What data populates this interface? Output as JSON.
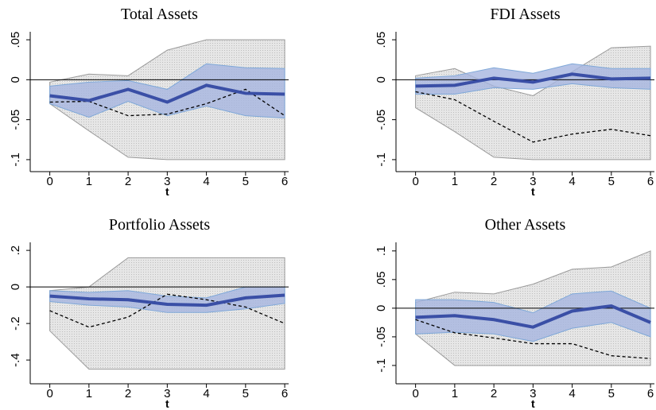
{
  "chart_data": [
    {
      "type": "line",
      "title": "Total Assets",
      "xlabel": "t",
      "x": [
        0,
        1,
        2,
        3,
        4,
        5,
        6
      ],
      "xlim": [
        -0.5,
        6.1
      ],
      "xticks": [
        0,
        1,
        2,
        3,
        4,
        5,
        6
      ],
      "ylim": [
        -0.115,
        0.06
      ],
      "yticks": [
        {
          "value": -0.1,
          "label": "-.1"
        },
        {
          "value": -0.05,
          "label": "-.05"
        },
        0,
        {
          "value": 0.05,
          "label": ".05"
        }
      ],
      "hline": 0,
      "bands": [
        {
          "color": "#e2e2e2",
          "edge": "#9a9a9a",
          "lower": [
            -0.03,
            -0.064,
            -0.097,
            -0.1,
            -0.1,
            -0.1,
            -0.1
          ],
          "upper": [
            -0.003,
            0.007,
            0.005,
            0.037,
            0.05,
            0.05,
            0.05
          ]
        },
        {
          "color": "#a6b5e0",
          "edge": "#7fa8d8",
          "lower": [
            -0.03,
            -0.047,
            -0.027,
            -0.045,
            -0.033,
            -0.045,
            -0.048
          ],
          "upper": [
            -0.008,
            -0.003,
            -0.001,
            -0.012,
            0.02,
            0.015,
            0.014
          ]
        }
      ],
      "lines": [
        {
          "color": "#000000",
          "dashed": true,
          "values": [
            -0.028,
            -0.027,
            -0.045,
            -0.043,
            -0.03,
            -0.012,
            -0.045
          ]
        },
        {
          "color": "#3a4fa6",
          "dashed": false,
          "values": [
            -0.02,
            -0.026,
            -0.012,
            -0.028,
            -0.007,
            -0.017,
            -0.018
          ]
        }
      ]
    },
    {
      "type": "line",
      "title": "FDI Assets",
      "xlabel": "t",
      "x": [
        0,
        1,
        2,
        3,
        4,
        5,
        6
      ],
      "xlim": [
        -0.5,
        6.1
      ],
      "xticks": [
        0,
        1,
        2,
        3,
        4,
        5,
        6
      ],
      "ylim": [
        -0.115,
        0.06
      ],
      "yticks": [
        {
          "value": -0.1,
          "label": "-.1"
        },
        {
          "value": -0.05,
          "label": "-.05"
        },
        0,
        {
          "value": 0.05,
          "label": ".05"
        }
      ],
      "hline": 0,
      "bands": [
        {
          "color": "#e2e2e2",
          "edge": "#9a9a9a",
          "lower": [
            -0.035,
            -0.065,
            -0.097,
            -0.1,
            -0.1,
            -0.1,
            -0.1
          ],
          "upper": [
            0.005,
            0.014,
            -0.008,
            -0.02,
            0.01,
            0.04,
            0.042
          ]
        },
        {
          "color": "#a6b5e0",
          "edge": "#7fa8d8",
          "lower": [
            -0.018,
            -0.018,
            -0.01,
            -0.012,
            -0.005,
            -0.01,
            -0.012
          ],
          "upper": [
            0.002,
            0.005,
            0.015,
            0.008,
            0.02,
            0.014,
            0.014
          ]
        }
      ],
      "lines": [
        {
          "color": "#000000",
          "dashed": true,
          "values": [
            -0.015,
            -0.025,
            -0.052,
            -0.078,
            -0.068,
            -0.062,
            -0.07
          ]
        },
        {
          "color": "#3a4fa6",
          "dashed": false,
          "values": [
            -0.008,
            -0.007,
            0.002,
            -0.003,
            0.007,
            0.001,
            0.002
          ]
        }
      ]
    },
    {
      "type": "line",
      "title": "Portfolio Assets",
      "xlabel": "t",
      "x": [
        0,
        1,
        2,
        3,
        4,
        5,
        6
      ],
      "xlim": [
        -0.5,
        6.1
      ],
      "xticks": [
        0,
        1,
        2,
        3,
        4,
        5,
        6
      ],
      "ylim": [
        -0.53,
        0.244
      ],
      "yticks": [
        {
          "value": -0.4,
          "label": "-.4"
        },
        {
          "value": -0.2,
          "label": "-.2"
        },
        0,
        {
          "value": 0.2,
          "label": ".2"
        }
      ],
      "hline": 0,
      "bands": [
        {
          "color": "#e2e2e2",
          "edge": "#9a9a9a",
          "lower": [
            -0.24,
            -0.45,
            -0.45,
            -0.45,
            -0.45,
            -0.45,
            -0.45
          ],
          "upper": [
            -0.02,
            0.0,
            0.16,
            0.16,
            0.16,
            0.16,
            0.16
          ]
        },
        {
          "color": "#a6b5e0",
          "edge": "#7fa8d8",
          "lower": [
            -0.08,
            -0.1,
            -0.11,
            -0.14,
            -0.14,
            -0.12,
            -0.09
          ],
          "upper": [
            -0.02,
            -0.03,
            -0.02,
            -0.05,
            -0.06,
            0.0,
            0.0
          ]
        }
      ],
      "lines": [
        {
          "color": "#000000",
          "dashed": true,
          "values": [
            -0.13,
            -0.22,
            -0.165,
            -0.04,
            -0.07,
            -0.11,
            -0.2
          ]
        },
        {
          "color": "#3a4fa6",
          "dashed": false,
          "values": [
            -0.05,
            -0.065,
            -0.07,
            -0.095,
            -0.1,
            -0.06,
            -0.045
          ]
        }
      ]
    },
    {
      "type": "line",
      "title": "Other Assets",
      "xlabel": "t",
      "x": [
        0,
        1,
        2,
        3,
        4,
        5,
        6
      ],
      "xlim": [
        -0.5,
        6.1
      ],
      "xticks": [
        0,
        1,
        2,
        3,
        4,
        5,
        6
      ],
      "ylim": [
        -0.132,
        0.115
      ],
      "yticks": [
        {
          "value": -0.1,
          "label": "-.1"
        },
        {
          "value": -0.05,
          "label": "-.05"
        },
        0,
        {
          "value": 0.05,
          "label": ".05"
        },
        {
          "value": 0.1,
          "label": ".1"
        }
      ],
      "hline": 0,
      "bands": [
        {
          "color": "#e2e2e2",
          "edge": "#9a9a9a",
          "lower": [
            -0.045,
            -0.1,
            -0.1,
            -0.1,
            -0.1,
            -0.1,
            -0.1
          ],
          "upper": [
            0.01,
            0.028,
            0.025,
            0.042,
            0.068,
            0.072,
            0.1
          ]
        },
        {
          "color": "#a6b5e0",
          "edge": "#7fa8d8",
          "lower": [
            -0.045,
            -0.042,
            -0.045,
            -0.058,
            -0.035,
            -0.025,
            -0.05
          ],
          "upper": [
            0.015,
            0.015,
            0.01,
            -0.008,
            0.025,
            0.03,
            0.0
          ]
        }
      ],
      "lines": [
        {
          "color": "#000000",
          "dashed": true,
          "values": [
            -0.02,
            -0.043,
            -0.052,
            -0.062,
            -0.062,
            -0.083,
            -0.088
          ]
        },
        {
          "color": "#3a4fa6",
          "dashed": false,
          "values": [
            -0.016,
            -0.013,
            -0.02,
            -0.033,
            -0.005,
            0.004,
            -0.025
          ]
        }
      ]
    }
  ]
}
